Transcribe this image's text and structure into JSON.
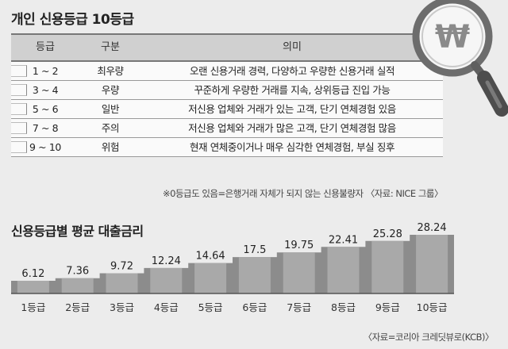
{
  "title": "개인 신용등급 10등급",
  "table": {
    "headers": [
      "등급",
      "구분",
      "의미"
    ],
    "rows": [
      {
        "grade": "1 ~ 2",
        "category": "최우량",
        "meaning": "오랜 신용거래 경력, 다양하고 우량한 신용거래 실적"
      },
      {
        "grade": "3 ~ 4",
        "category": "우량",
        "meaning": "꾸준하게 우량한 거래를 지속, 상위등급 진입 가능"
      },
      {
        "grade": "5 ~ 6",
        "category": "일반",
        "meaning": "저신용 업체와 거래가 있는 고객, 단기 연체경험 있음"
      },
      {
        "grade": "7 ~ 8",
        "category": "주의",
        "meaning": "저신용 업체와 거래가 많은 고객, 단기 연체경험 많음"
      },
      {
        "grade": "9 ~ 10",
        "category": "위험",
        "meaning": "현재 연체중이거나 매우 심각한 연체경험, 부실 징후"
      }
    ],
    "note": "※0등급도 있음=은행거래 자체가 되지 않는 신용불량자 〈자료: NICE 그룹〉"
  },
  "magnifier": {
    "symbol": "₩"
  },
  "chart_data": {
    "type": "bar",
    "title": "신용등급별 평균 대출금리",
    "categories": [
      "1등급",
      "2등급",
      "3등급",
      "4등급",
      "5등급",
      "6등급",
      "7등급",
      "8등급",
      "9등급",
      "10등급"
    ],
    "values": [
      6.12,
      7.36,
      9.72,
      12.24,
      14.64,
      17.5,
      19.75,
      22.41,
      25.28,
      28.24
    ],
    "value_labels": [
      "6.12",
      "7.36",
      "9.72",
      "12.24",
      "14.64",
      "17.5",
      "19.75",
      "22.41",
      "25.28",
      "28.24"
    ],
    "source": "〈자료=코리아 크레딧뷰로(KCB)〉",
    "colors": {
      "bar": "#a9a9a9",
      "step": "#8c8c8c"
    }
  }
}
